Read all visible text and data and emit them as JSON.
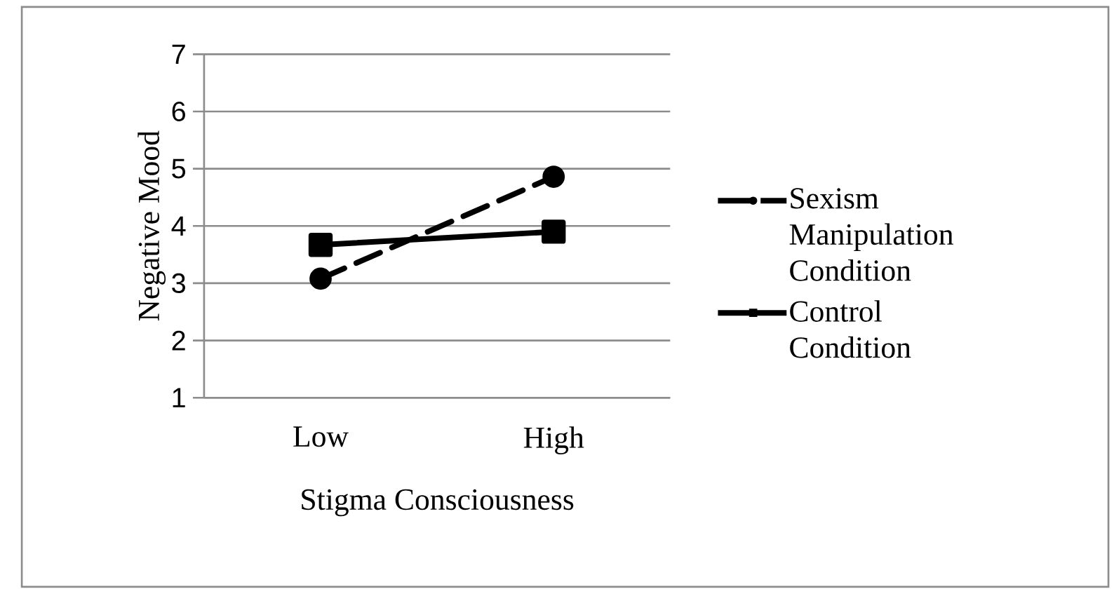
{
  "chart_data": {
    "type": "line",
    "xlabel": "Stigma Consciousness",
    "ylabel": "Negative Mood",
    "categories": [
      "Low",
      "High"
    ],
    "series": [
      {
        "name": "Sexism Manipulation Condition",
        "color": "#000000",
        "values": [
          3.08,
          4.86
        ],
        "marker": "circle",
        "line_style": "dashed"
      },
      {
        "name": "Control Condition",
        "color": "#000000",
        "values": [
          3.67,
          3.9
        ],
        "marker": "square",
        "line_style": "solid"
      }
    ],
    "ylim": [
      1,
      7
    ],
    "yticks": [
      1,
      2,
      3,
      4,
      5,
      6,
      7
    ],
    "grid": "y",
    "legend": "right"
  }
}
